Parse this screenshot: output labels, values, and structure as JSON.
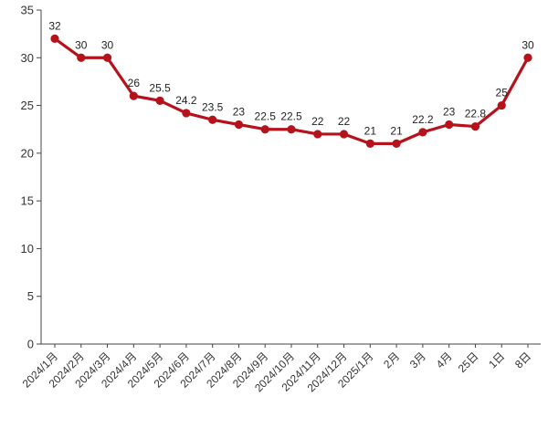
{
  "chart_data": {
    "type": "line",
    "title": "",
    "xlabel": "",
    "ylabel": "",
    "ylim": [
      0,
      35
    ],
    "y_ticks": [
      0,
      5,
      10,
      15,
      20,
      25,
      30,
      35
    ],
    "grid": false,
    "legend": "none",
    "categories": [
      "2024/1月",
      "2024/2月",
      "2024/3月",
      "2024/4月",
      "2024/5月",
      "2024/6月",
      "2024/7月",
      "2024/8月",
      "2024/9月",
      "2024/10月",
      "2024/11月",
      "2024/12月",
      "2025/1月",
      "2月",
      "3月",
      "4月",
      "25日",
      "1日",
      "8日"
    ],
    "series": [
      {
        "color": "#b5121b",
        "values": [
          32,
          30,
          30,
          26,
          25.5,
          24.2,
          23.5,
          23,
          22.5,
          22.5,
          22,
          22,
          21,
          21,
          22.2,
          23,
          22.8,
          25,
          30
        ],
        "labels": [
          "32",
          "30",
          "30",
          "26",
          "25.5",
          "24.2",
          "23.5",
          "23",
          "22.5",
          "22.5",
          "22",
          "22",
          "21",
          "21",
          "22.2",
          "23",
          "22.8",
          "25",
          "30"
        ]
      }
    ]
  }
}
